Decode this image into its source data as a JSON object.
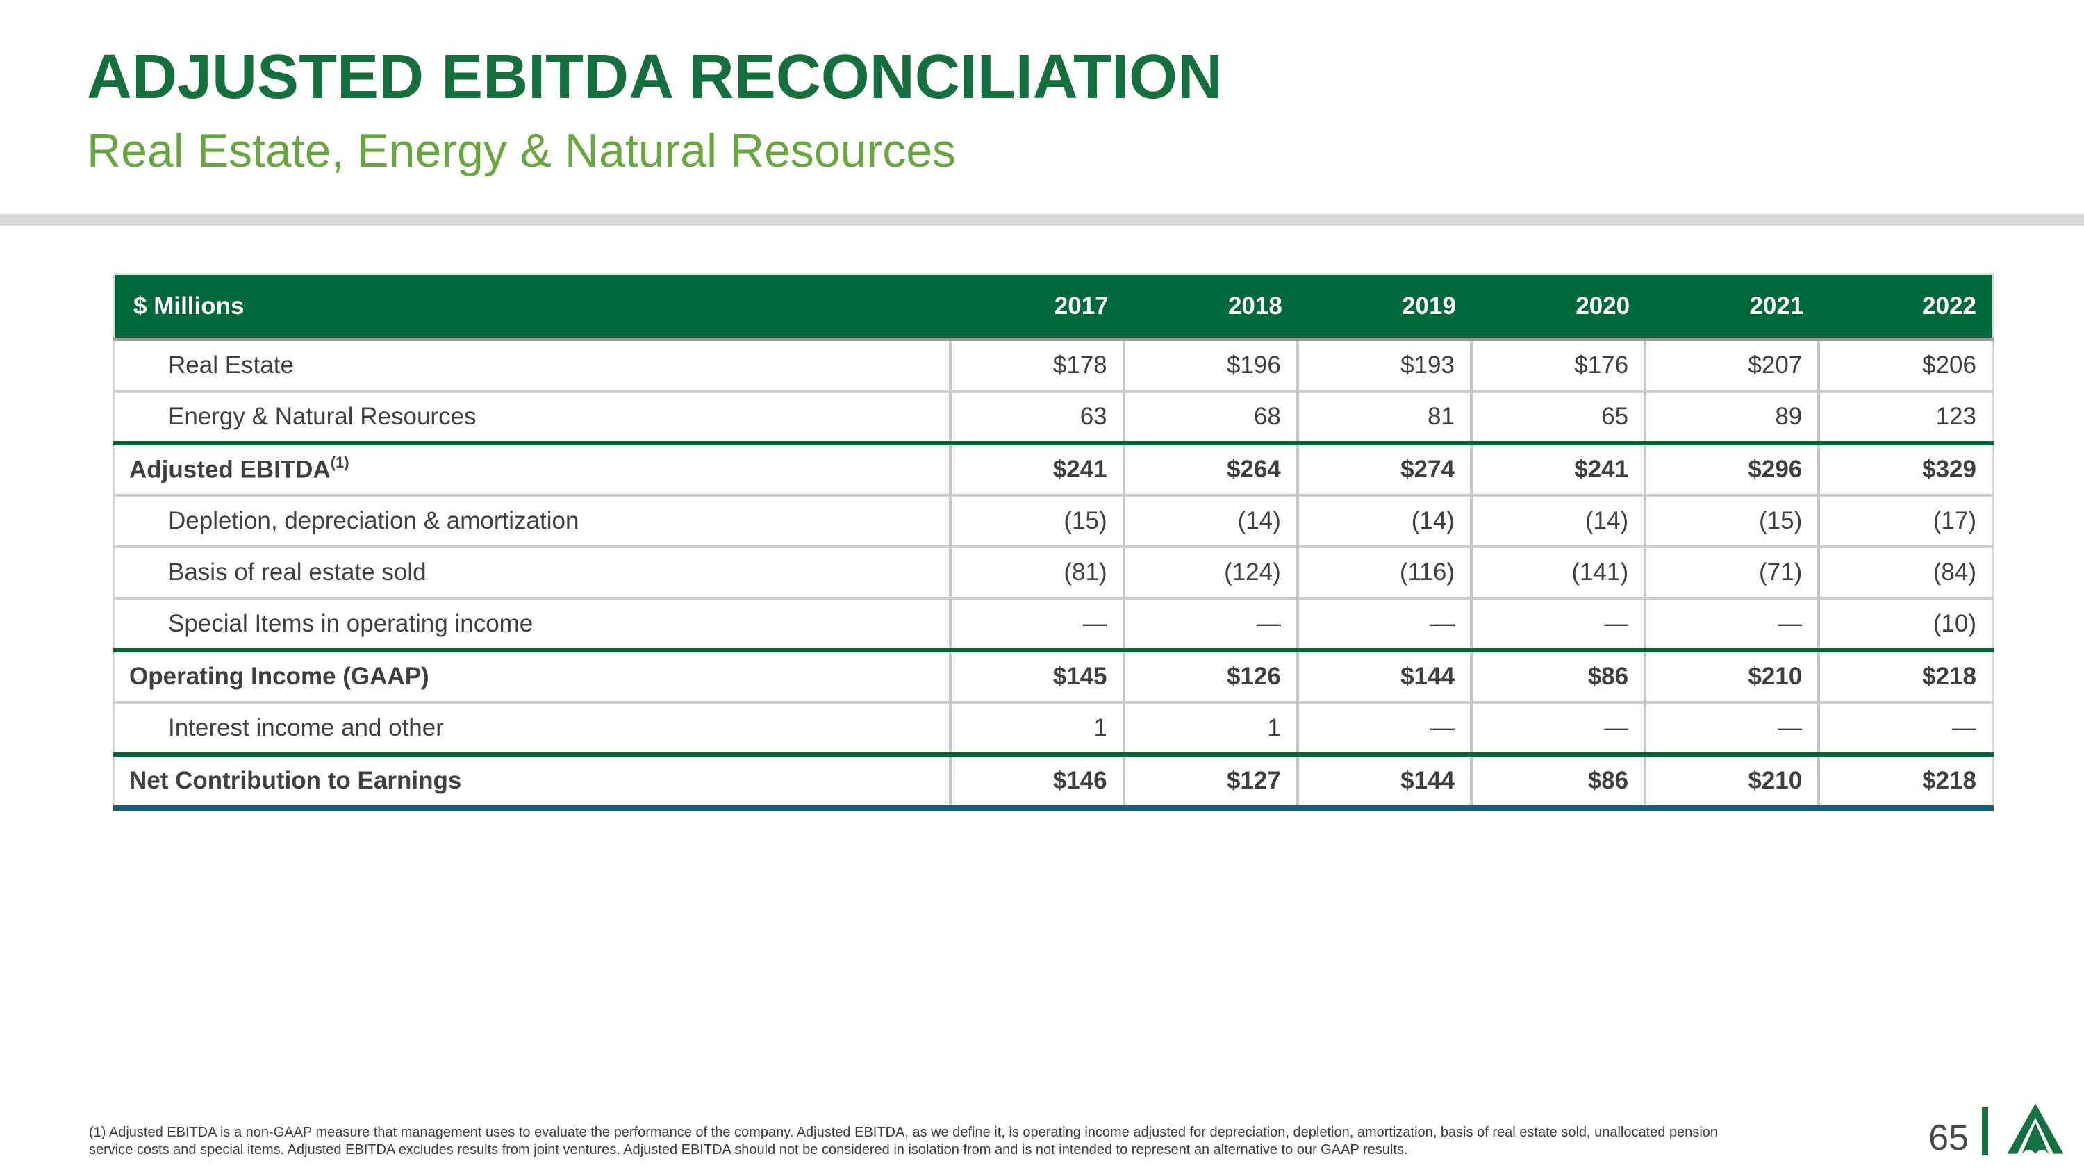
{
  "slide": {
    "title": "ADJUSTED EBITDA RECONCILIATION",
    "subtitle": "Real Estate, Energy & Natural Resources"
  },
  "table": {
    "unit_label": "$ Millions",
    "years": [
      "2017",
      "2018",
      "2019",
      "2020",
      "2021",
      "2022"
    ],
    "rows": [
      {
        "label": "Real Estate",
        "sup": "",
        "indent": true,
        "emphasis": false,
        "rule_above": "gray",
        "values": [
          "$178",
          "$196",
          "$193",
          "$176",
          "$207",
          "$206"
        ]
      },
      {
        "label": "Energy & Natural Resources",
        "sup": "",
        "indent": true,
        "emphasis": false,
        "rule_above": "gray",
        "values": [
          "63",
          "68",
          "81",
          "65",
          "89",
          "123"
        ]
      },
      {
        "label": "Adjusted EBITDA",
        "sup": "(1)",
        "indent": false,
        "emphasis": true,
        "rule_above": "green",
        "values": [
          "$241",
          "$264",
          "$274",
          "$241",
          "$296",
          "$329"
        ]
      },
      {
        "label": "Depletion, depreciation & amortization",
        "sup": "",
        "indent": true,
        "emphasis": false,
        "rule_above": "gray",
        "values": [
          "(15)",
          "(14)",
          "(14)",
          "(14)",
          "(15)",
          "(17)"
        ]
      },
      {
        "label": "Basis of real estate sold",
        "sup": "",
        "indent": true,
        "emphasis": false,
        "rule_above": "gray",
        "values": [
          "(81)",
          "(124)",
          "(116)",
          "(141)",
          "(71)",
          "(84)"
        ]
      },
      {
        "label": "Special Items in operating income",
        "sup": "",
        "indent": true,
        "emphasis": false,
        "rule_above": "gray",
        "values": [
          "—",
          "—",
          "—",
          "—",
          "—",
          "(10)"
        ]
      },
      {
        "label": "Operating Income (GAAP)",
        "sup": "",
        "indent": false,
        "emphasis": true,
        "rule_above": "green",
        "values": [
          "$145",
          "$126",
          "$144",
          "$86",
          "$210",
          "$218"
        ]
      },
      {
        "label": "Interest income and other",
        "sup": "",
        "indent": true,
        "emphasis": false,
        "rule_above": "gray",
        "values": [
          "1",
          "1",
          "—",
          "—",
          "—",
          "—"
        ]
      },
      {
        "label": "Net Contribution to Earnings",
        "sup": "",
        "indent": false,
        "emphasis": true,
        "rule_above": "green",
        "values": [
          "$146",
          "$127",
          "$144",
          "$86",
          "$210",
          "$218"
        ]
      }
    ]
  },
  "footnote": {
    "line1": "(1) Adjusted EBITDA is a non-GAAP measure that management uses to evaluate the performance of the company. Adjusted EBITDA, as we define it, is operating income adjusted for depreciation, depletion, amortization, basis of real estate sold, unallocated pension",
    "line2": "service costs and special items. Adjusted EBITDA excludes results from joint ventures. Adjusted EBITDA should not be considered in isolation from and is not intended to represent an alternative to our GAAP results."
  },
  "footer": {
    "page_number": "65",
    "logo": "weyerhaeuser-logo"
  },
  "colors": {
    "header_green": "#00693a",
    "title_green": "#156f3c",
    "subtitle_green": "#66a63c",
    "rule_green": "#00693a",
    "rule_teal": "#155e75",
    "logo_green": "#15713f",
    "text_gray": "#3f3f3f",
    "divider_gray": "#c6c6c6",
    "bar_gray": "#d9d9d9"
  }
}
